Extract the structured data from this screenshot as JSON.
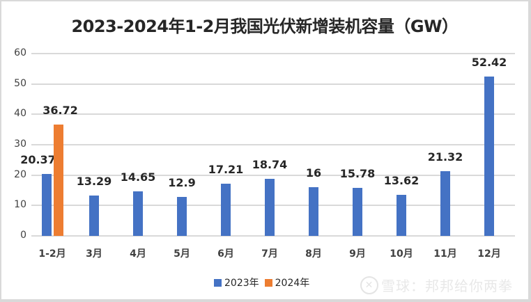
{
  "chart_data": {
    "type": "bar",
    "title": "2023-2024年1-2月我国光伏新增装机容量（GW）",
    "xlabel": "",
    "ylabel": "",
    "ylim": [
      0,
      60
    ],
    "yticks": [
      "0",
      "10",
      "20",
      "30",
      "40",
      "50",
      "60"
    ],
    "grid": true,
    "legend_position": "bottom",
    "categories": [
      "1-2月",
      "3月",
      "4月",
      "5月",
      "6月",
      "7月",
      "8月",
      "9月",
      "10月",
      "11月",
      "12月"
    ],
    "series": [
      {
        "name": "2023年",
        "color": "#4472c4",
        "values": [
          20.37,
          13.29,
          14.65,
          12.9,
          17.21,
          18.74,
          16,
          15.78,
          13.62,
          21.32,
          52.42
        ]
      },
      {
        "name": "2024年",
        "color": "#ed7d31",
        "values": [
          36.72,
          null,
          null,
          null,
          null,
          null,
          null,
          null,
          null,
          null,
          null
        ]
      }
    ],
    "data_labels": {
      "2023年": [
        "20.37",
        "13.29",
        "14.65",
        "12.9",
        "17.21",
        "18.74",
        "16",
        "15.78",
        "13.62",
        "21.32",
        "52.42"
      ],
      "2024年": [
        "36.72"
      ]
    }
  },
  "legend": {
    "items": [
      {
        "label": "2023年",
        "color": "#4472c4"
      },
      {
        "label": "2024年",
        "color": "#ed7d31"
      }
    ]
  },
  "watermark": {
    "text": "雪球：邦邦给你两拳"
  }
}
